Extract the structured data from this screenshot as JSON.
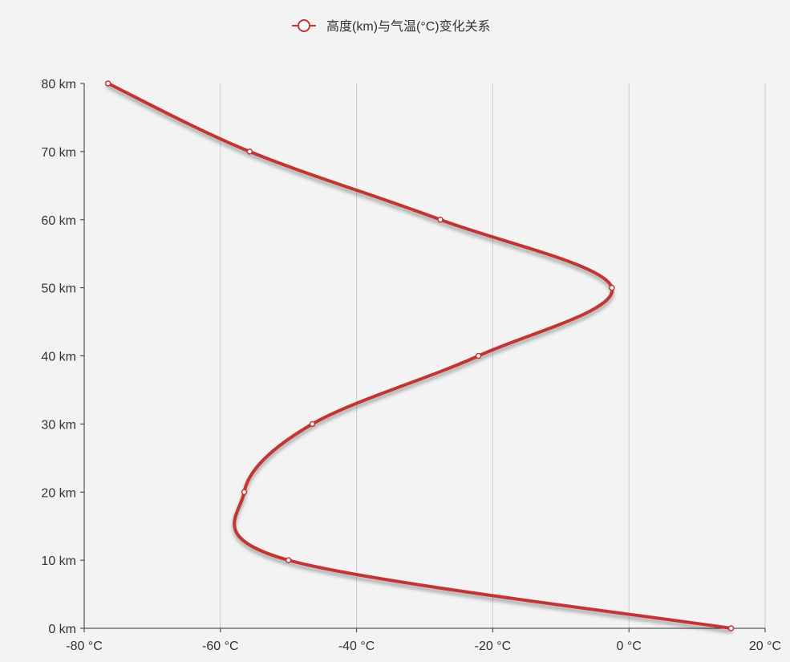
{
  "chart_data": {
    "type": "line",
    "legend": {
      "position": "top-center",
      "entries": [
        "高度(km)与气温(°C)变化关系"
      ]
    },
    "x_axis": {
      "unit": "°C",
      "range": [
        -80,
        20
      ],
      "ticks": [
        -80,
        -60,
        -40,
        -20,
        0,
        20
      ],
      "tick_labels": [
        "-80 °C",
        "-60 °C",
        "-40 °C",
        "-20 °C",
        "0 °C",
        "20 °C"
      ],
      "grid": true
    },
    "y_axis": {
      "unit": "km",
      "range": [
        0,
        80
      ],
      "ticks": [
        0,
        10,
        20,
        30,
        40,
        50,
        60,
        70,
        80
      ],
      "tick_labels": [
        "0 km",
        "10 km",
        "20 km",
        "30 km",
        "40 km",
        "50 km",
        "60 km",
        "70 km",
        "80 km"
      ],
      "grid": false
    },
    "series": [
      {
        "name": "高度(km)与气温(°C)变化关系",
        "color": "#c23531",
        "smooth": true,
        "points": [
          {
            "x": 15,
            "y": 0
          },
          {
            "x": -50,
            "y": 10
          },
          {
            "x": -56.5,
            "y": 20
          },
          {
            "x": -46.5,
            "y": 30
          },
          {
            "x": -22.1,
            "y": 40
          },
          {
            "x": -2.5,
            "y": 50
          },
          {
            "x": -27.7,
            "y": 60
          },
          {
            "x": -55.7,
            "y": 70
          },
          {
            "x": -76.5,
            "y": 80
          }
        ]
      }
    ]
  }
}
